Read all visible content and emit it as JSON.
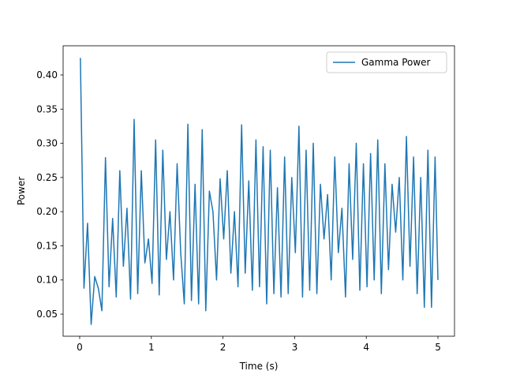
{
  "chart_data": {
    "type": "line",
    "xlabel": "Time (s)",
    "ylabel": "Power",
    "x": [
      0.01,
      0.06,
      0.11,
      0.16,
      0.21,
      0.26,
      0.31,
      0.36,
      0.41,
      0.46,
      0.51,
      0.56,
      0.61,
      0.66,
      0.71,
      0.76,
      0.81,
      0.86,
      0.91,
      0.96,
      1.01,
      1.06,
      1.11,
      1.16,
      1.21,
      1.26,
      1.31,
      1.36,
      1.41,
      1.46,
      1.51,
      1.56,
      1.61,
      1.66,
      1.71,
      1.76,
      1.81,
      1.86,
      1.91,
      1.96,
      2.01,
      2.06,
      2.11,
      2.16,
      2.21,
      2.26,
      2.31,
      2.36,
      2.41,
      2.46,
      2.51,
      2.56,
      2.61,
      2.66,
      2.71,
      2.76,
      2.81,
      2.86,
      2.91,
      2.96,
      3.01,
      3.06,
      3.11,
      3.16,
      3.21,
      3.26,
      3.31,
      3.36,
      3.41,
      3.46,
      3.51,
      3.56,
      3.61,
      3.66,
      3.71,
      3.76,
      3.81,
      3.86,
      3.91,
      3.96,
      4.01,
      4.06,
      4.11,
      4.16,
      4.21,
      4.26,
      4.31,
      4.36,
      4.41,
      4.46,
      4.51,
      4.56,
      4.61,
      4.66,
      4.71,
      4.76,
      4.81,
      4.86,
      4.91,
      4.96,
      5.0
    ],
    "series": [
      {
        "name": "Gamma Power",
        "color": "#1f77b4",
        "values": [
          0.425,
          0.088,
          0.183,
          0.035,
          0.105,
          0.088,
          0.055,
          0.279,
          0.09,
          0.19,
          0.075,
          0.26,
          0.12,
          0.205,
          0.072,
          0.335,
          0.08,
          0.26,
          0.125,
          0.16,
          0.095,
          0.305,
          0.078,
          0.29,
          0.13,
          0.2,
          0.1,
          0.27,
          0.14,
          0.065,
          0.328,
          0.07,
          0.24,
          0.065,
          0.32,
          0.055,
          0.23,
          0.2,
          0.1,
          0.248,
          0.16,
          0.26,
          0.11,
          0.2,
          0.09,
          0.327,
          0.11,
          0.245,
          0.085,
          0.305,
          0.09,
          0.295,
          0.065,
          0.29,
          0.08,
          0.235,
          0.075,
          0.28,
          0.08,
          0.25,
          0.14,
          0.325,
          0.075,
          0.29,
          0.085,
          0.3,
          0.08,
          0.24,
          0.16,
          0.225,
          0.1,
          0.28,
          0.14,
          0.205,
          0.075,
          0.27,
          0.13,
          0.3,
          0.085,
          0.27,
          0.09,
          0.285,
          0.1,
          0.305,
          0.08,
          0.27,
          0.115,
          0.24,
          0.17,
          0.25,
          0.1,
          0.31,
          0.12,
          0.28,
          0.08,
          0.25,
          0.06,
          0.29,
          0.06,
          0.28,
          0.1
        ]
      }
    ],
    "xlim": [
      -0.231,
      5.231
    ],
    "xticks": [
      0,
      1,
      2,
      3,
      4,
      5
    ],
    "ylim": [
      0.0177,
      0.4427
    ],
    "yticks": [
      0.05,
      {
        "value": 0.1,
        "label": "0.10"
      },
      0.15,
      {
        "value": 0.2,
        "label": "0.20"
      },
      0.25,
      {
        "value": 0.3,
        "label": "0.30"
      },
      0.35,
      {
        "value": 0.4,
        "label": "0.40"
      }
    ],
    "legend": "upper right"
  }
}
